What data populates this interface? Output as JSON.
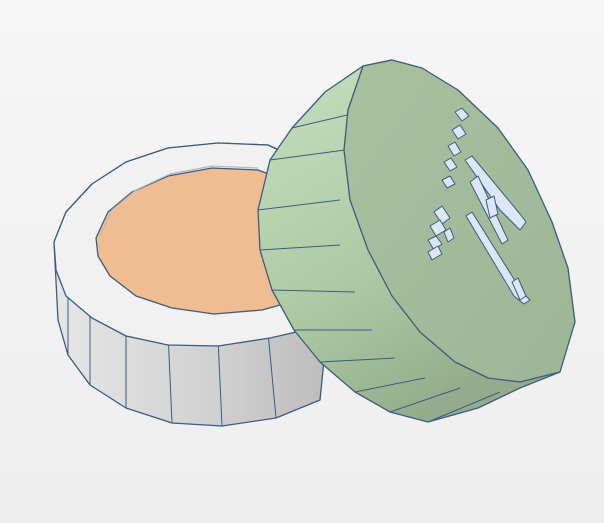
{
  "scene": {
    "objects": [
      {
        "name": "container-base",
        "rim_color": "#f0f0f0",
        "wall_color": "#cfcfcf",
        "fill_color": "#f0bd93"
      },
      {
        "name": "lid",
        "side_color": "#b5d2ad",
        "top_color": "#a2bb99",
        "engraving_color": "#d9e8f5"
      }
    ],
    "edge_color": "#3d5a80",
    "background": "#f2f2f2"
  }
}
